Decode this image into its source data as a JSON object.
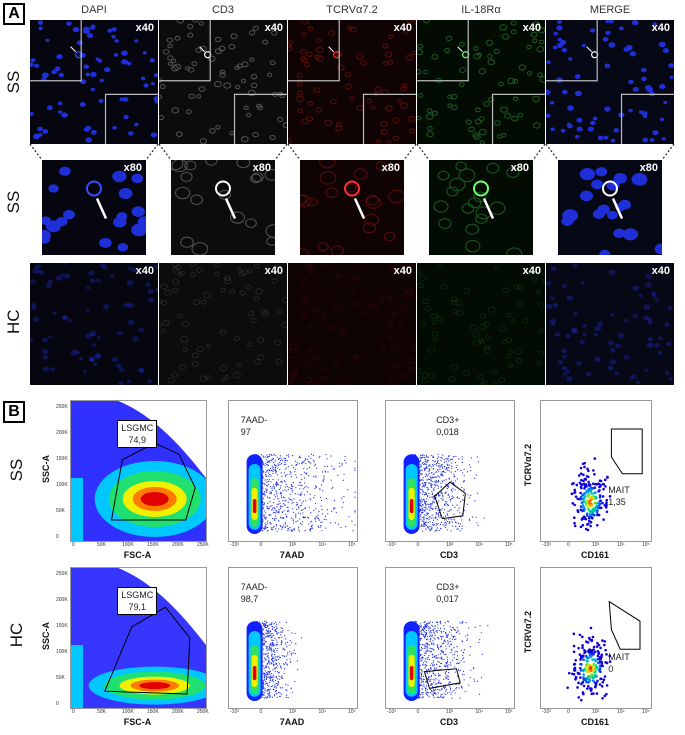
{
  "panels": {
    "a": "A",
    "b": "B"
  },
  "a": {
    "columns": [
      "DAPI",
      "CD3",
      "TCRVα7.2",
      "IL-18Rα",
      "MERGE"
    ],
    "rows": [
      "SS",
      "SS",
      "HC"
    ],
    "mag": [
      "x40",
      "x80",
      "x40"
    ],
    "colors": {
      "dapi": "#1f2fd8",
      "cd3": "#d8d8d8",
      "tcr": "#d21a1a",
      "il18": "#32c23c"
    }
  },
  "b": {
    "rows": [
      "SS",
      "HC"
    ],
    "xlabels": [
      "FSC-A",
      "7AAD",
      "CD3",
      "CD161"
    ],
    "ylabels": [
      "SSC-A",
      "TCRVα7.2"
    ],
    "gates": {
      "ss": [
        {
          "name": "LSGMC",
          "value": "74,9"
        },
        {
          "name": "7AAD-",
          "value": "97"
        },
        {
          "name": "CD3+",
          "value": "0,018"
        },
        {
          "name": "MAIT",
          "value": "1,35"
        }
      ],
      "hc": [
        {
          "name": "LSGMC",
          "value": "79,1"
        },
        {
          "name": "7AAD-",
          "value": "98,7"
        },
        {
          "name": "CD3+",
          "value": "0,017"
        },
        {
          "name": "MAIT",
          "value": "0"
        }
      ]
    },
    "yticks_scatter": [
      "250K",
      "200K",
      "150K",
      "100K",
      "50K",
      "0"
    ],
    "xticks_scatter": [
      "0",
      "50K",
      "100K",
      "150K",
      "200K",
      "250K"
    ],
    "xticks_log": [
      "-10³",
      "0",
      "10³",
      "10⁴",
      "10⁵"
    ]
  }
}
